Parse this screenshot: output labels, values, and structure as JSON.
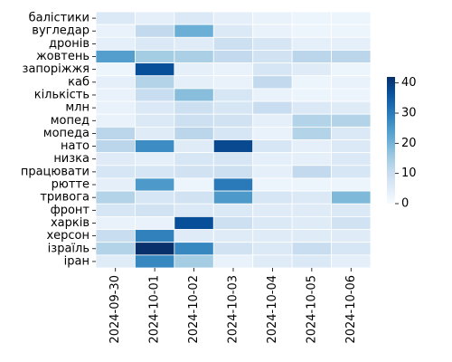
{
  "chart_data": {
    "type": "heatmap",
    "title": "",
    "xlabel": "",
    "ylabel": "",
    "x_categories": [
      "2024-09-30",
      "2024-10-01",
      "2024-10-02",
      "2024-10-03",
      "2024-10-04",
      "2024-10-05",
      "2024-10-06"
    ],
    "y_categories": [
      "балістики",
      "вугледар",
      "дронів",
      "жовтень",
      "запоріжжя",
      "каб",
      "кількість",
      "млн",
      "мопед",
      "мопеда",
      "нато",
      "низка",
      "працювати",
      "рютте",
      "тривога",
      "фронт",
      "харків",
      "херсон",
      "ізраїль",
      "іран"
    ],
    "values": [
      [
        6,
        4,
        6,
        4,
        3,
        2,
        2
      ],
      [
        3,
        11,
        21,
        6,
        3,
        2,
        2
      ],
      [
        4,
        6,
        5,
        9,
        7,
        4,
        4
      ],
      [
        24,
        15,
        14,
        11,
        8,
        12,
        12
      ],
      [
        2,
        37,
        4,
        3,
        7,
        5,
        2
      ],
      [
        4,
        13,
        4,
        3,
        11,
        2,
        3
      ],
      [
        3,
        10,
        18,
        7,
        3,
        2,
        2
      ],
      [
        3,
        6,
        9,
        7,
        10,
        6,
        5
      ],
      [
        3,
        6,
        9,
        8,
        4,
        13,
        13
      ],
      [
        12,
        5,
        12,
        7,
        3,
        13,
        6
      ],
      [
        12,
        27,
        5,
        38,
        7,
        4,
        6
      ],
      [
        5,
        4,
        7,
        7,
        4,
        4,
        6
      ],
      [
        7,
        7,
        8,
        9,
        4,
        11,
        7
      ],
      [
        4,
        25,
        2,
        30,
        2,
        2,
        2
      ],
      [
        13,
        7,
        8,
        25,
        7,
        6,
        19
      ],
      [
        7,
        8,
        6,
        6,
        5,
        5,
        6
      ],
      [
        3,
        3,
        37,
        9,
        6,
        5,
        8
      ],
      [
        10,
        29,
        5,
        5,
        5,
        5,
        5
      ],
      [
        13,
        42,
        28,
        8,
        6,
        10,
        7
      ],
      [
        5,
        28,
        15,
        3,
        5,
        6,
        4
      ]
    ],
    "vmin": 0,
    "vmax": 42,
    "colormap": "Blues",
    "colorbar_ticks": [
      0,
      10,
      20,
      30,
      40
    ],
    "grid": false,
    "cell_border_color": "#ffffff"
  }
}
